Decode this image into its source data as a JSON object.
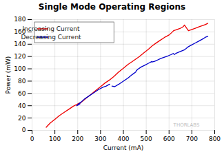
{
  "chart_data": {
    "type": "line",
    "title": "Single Mode Operating Regions",
    "xlabel": "Current (mA)",
    "ylabel": "Power (mW)",
    "xlim": [
      0,
      800
    ],
    "ylim": [
      0,
      180
    ],
    "xticks": [
      0,
      100,
      200,
      300,
      400,
      500,
      600,
      700,
      800
    ],
    "yticks": [
      0,
      20,
      40,
      60,
      80,
      100,
      120,
      140,
      160,
      180
    ],
    "grid": true,
    "legend": "upper left",
    "series": [
      {
        "name": "Increasing Current",
        "color": "#ee0000",
        "x": [
          62,
          80,
          100,
          120,
          140,
          160,
          180,
          200,
          210,
          null,
          200,
          220,
          240,
          260,
          280,
          300,
          320,
          340,
          null,
          340,
          360,
          380,
          400,
          420,
          440,
          455,
          null,
          455,
          470,
          490,
          510,
          525,
          null,
          525,
          540,
          560,
          580,
          600,
          615,
          620,
          null,
          620,
          635,
          650,
          660,
          668,
          null,
          668,
          685,
          700,
          715,
          730,
          745,
          760,
          770
        ],
        "values": [
          5,
          12,
          18,
          24,
          29,
          34,
          39,
          43,
          45,
          null,
          41,
          47,
          53,
          59,
          65,
          71,
          77,
          82,
          null,
          82,
          88,
          95,
          101,
          107,
          112,
          116,
          null,
          116,
          120,
          126,
          132,
          137,
          null,
          137,
          141,
          146,
          151,
          155,
          160,
          162,
          null,
          162,
          164,
          166,
          168,
          171,
          null,
          171,
          162,
          164,
          166,
          168,
          170,
          172,
          174
        ]
      },
      {
        "name": "Decreasing Current",
        "color": "#0000cc",
        "x": [
          210,
          205,
          200,
          195,
          null,
          340,
          325,
          310,
          290,
          270,
          250,
          230,
          215,
          200,
          null,
          455,
          440,
          420,
          400,
          380,
          362,
          350,
          null,
          525,
          510,
          495,
          478,
          462,
          455,
          null,
          620,
          608,
          595,
          580,
          565,
          548,
          535,
          525,
          null,
          668,
          655,
          642,
          630,
          622,
          null,
          770,
          758,
          745,
          730,
          715,
          700,
          685,
          675,
          668
        ],
        "values": [
          43,
          42,
          41,
          40,
          null,
          75,
          72,
          70,
          66,
          61,
          56,
          51,
          46,
          42,
          null,
          95,
          91,
          85,
          80,
          75,
          71,
          72,
          null,
          112,
          109,
          106,
          103,
          99,
          96,
          null,
          125,
          123,
          121,
          119,
          117,
          114,
          112,
          111,
          null,
          131,
          129,
          127,
          125,
          123,
          null,
          153,
          151,
          148,
          145,
          142,
          139,
          136,
          133,
          131
        ]
      }
    ],
    "annotations": [
      {
        "text": "THORLABS",
        "color": "#b0b0b0"
      }
    ]
  }
}
